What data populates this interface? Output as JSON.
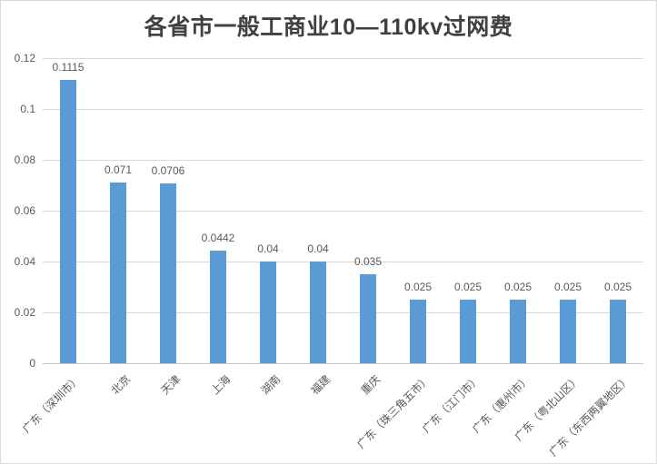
{
  "title": "各省市一般工商业10—110kv过网费",
  "chart_data": {
    "type": "bar",
    "title": "各省市一般工商业10—110kv过网费",
    "categories": [
      "广东（深圳市）",
      "北京",
      "天津",
      "上海",
      "湖南",
      "福建",
      "重庆",
      "广东（珠三角五市）",
      "广东（江门市）",
      "广东（惠州市）",
      "广东（粤北山区）",
      "广东（东西两翼地区）"
    ],
    "values": [
      0.1115,
      0.071,
      0.0706,
      0.0442,
      0.04,
      0.04,
      0.035,
      0.025,
      0.025,
      0.025,
      0.025,
      0.025
    ],
    "value_labels": [
      "0.1115",
      "0.071",
      "0.0706",
      "0.0442",
      "0.04",
      "0.04",
      "0.035",
      "0.025",
      "0.025",
      "0.025",
      "0.025",
      "0.025"
    ],
    "xlabel": "",
    "ylabel": "",
    "ylim": [
      0,
      0.12
    ],
    "ytick_labels": [
      "0",
      "0.02",
      "0.04",
      "0.06",
      "0.08",
      "0.1",
      "0.12"
    ],
    "ytick_values": [
      0,
      0.02,
      0.04,
      0.06,
      0.08,
      0.1,
      0.12
    ],
    "grid": true,
    "legend_position": "none",
    "bar_color": "#5b9bd5",
    "gridline_color": "#d9d9d9",
    "axis_line_color": "#c6c6c6",
    "tick_label_color": "#595959",
    "data_label_color": "#595959",
    "title_color": "#404040"
  }
}
